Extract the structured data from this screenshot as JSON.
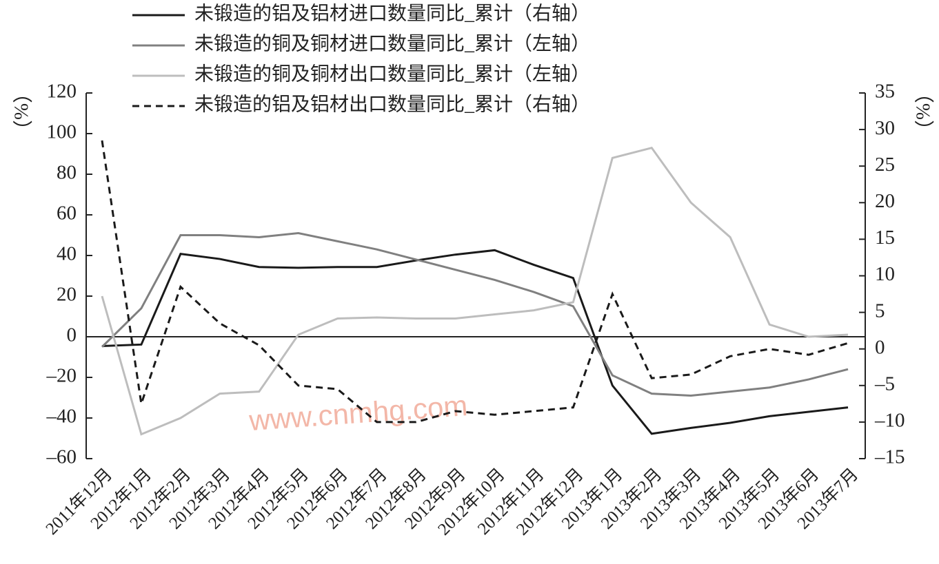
{
  "chart_data": {
    "type": "line",
    "categories": [
      "2011年12月",
      "2012年1月",
      "2012年2月",
      "2012年3月",
      "2012年4月",
      "2012年5月",
      "2012年6月",
      "2012年7月",
      "2012年8月",
      "2012年9月",
      "2012年10月",
      "2012年11月",
      "2012年12月",
      "2013年1月",
      "2013年2月",
      "2013年3月",
      "2013年4月",
      "2013年5月",
      "2013年6月",
      "2013年7月"
    ],
    "y_label": "（%）",
    "y2_label": "（%）",
    "watermark": "www.cnmhg.com",
    "ylim": [
      -60,
      120
    ],
    "yticks": [
      {
        "value": -60,
        "label": "–60"
      },
      {
        "value": -40,
        "label": "–40"
      },
      {
        "value": -20,
        "label": "–20"
      },
      0,
      20,
      40,
      60,
      80,
      100,
      120
    ],
    "y2lim": [
      -15,
      35
    ],
    "y2ticks": [
      {
        "value": -15,
        "label": "–15"
      },
      {
        "value": -10,
        "label": "–10"
      },
      {
        "value": -5,
        "label": "–5"
      },
      0,
      5,
      10,
      15,
      20,
      25,
      30,
      35
    ],
    "series": [
      {
        "name": "未锻造的铝及铝材进口数量同比_累计（右轴）",
        "color": "#1a1a1a",
        "dash": false,
        "axis": "y2",
        "values": [
          0.4,
          0.6,
          13.0,
          12.3,
          11.2,
          11.1,
          11.2,
          11.2,
          12.1,
          12.9,
          13.5,
          11.5,
          9.7,
          -5.0,
          -11.6,
          -10.8,
          -10.1,
          -9.2,
          -8.6,
          -8.0
        ]
      },
      {
        "name": "未锻造的铜及铜材进口数量同比_累计（左轴）",
        "color": "#808080",
        "dash": false,
        "axis": "y",
        "values": [
          -5,
          14,
          50,
          50,
          49,
          51,
          47,
          43,
          38,
          33,
          28,
          22,
          15,
          -19,
          -28,
          -29,
          -27,
          -25,
          -21,
          -16
        ]
      },
      {
        "name": "未锻造的铜及铜材出口数量同比_累计（左轴）",
        "color": "#bdbdbd",
        "dash": false,
        "axis": "y",
        "values": [
          20,
          -48,
          -40,
          -28,
          -27,
          1,
          9,
          9.5,
          9,
          9,
          11,
          13,
          17,
          88,
          93,
          66,
          49,
          6,
          0,
          1
        ]
      },
      {
        "name": "未锻造的铝及铝材出口数量同比_累计（右轴）",
        "color": "#1a1a1a",
        "dash": true,
        "axis": "y2",
        "values": [
          28.5,
          -7.5,
          8.5,
          3.5,
          0.5,
          -5,
          -5.5,
          -10,
          -10,
          -8.5,
          -9,
          -8.5,
          -8,
          7.5,
          -4,
          -3.5,
          -1,
          0,
          -0.8,
          0.8
        ]
      }
    ]
  }
}
